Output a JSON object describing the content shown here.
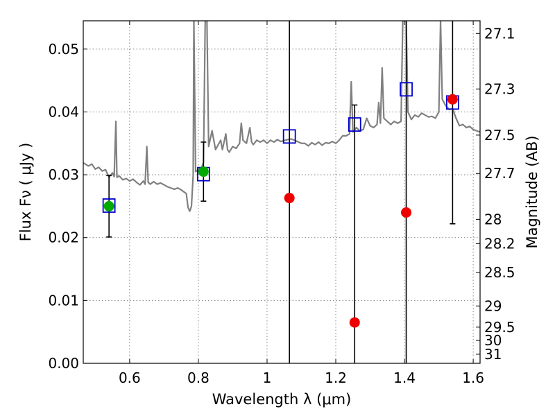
{
  "chart_data": {
    "type": "scatter",
    "title": "",
    "xlabel": "Wavelength  λ (μm)",
    "ylabel": "Flux  Fν  ( μJy )",
    "y2label": "Magnitude (AB)",
    "xlim": [
      0.465,
      1.62
    ],
    "ylim": [
      0.0,
      0.0545
    ],
    "grid": true,
    "x_ticks": [
      0.6,
      0.8,
      1.0,
      1.2,
      1.4,
      1.6
    ],
    "x_tick_labels": [
      "0.6",
      "0.8",
      "1",
      "1.2",
      "1.4",
      "1.6"
    ],
    "y_ticks": [
      0.0,
      0.01,
      0.02,
      0.03,
      0.04,
      0.05
    ],
    "y_tick_labels": [
      "0.00",
      "0.01",
      "0.02",
      "0.03",
      "0.04",
      "0.05"
    ],
    "y2_ticks": [
      27.1,
      27.3,
      27.5,
      27.7,
      28,
      28.2,
      28.5,
      29,
      29.5,
      30,
      31
    ],
    "y2_tick_labels": [
      "27.1",
      "27.3",
      "27.5",
      "27.7",
      "28",
      "28.2",
      "28.5",
      "29",
      "29.5",
      "30",
      "31"
    ],
    "colors": {
      "spectrum": "#808080",
      "model_box": "#0000cc",
      "detection": "#00aa00",
      "upper_limit": "#ee0000",
      "errorbar": "#000000",
      "grid": "#666666"
    },
    "series": [
      {
        "name": "model spectrum",
        "kind": "line",
        "points": [
          [
            0.465,
            0.0319
          ],
          [
            0.48,
            0.0314
          ],
          [
            0.49,
            0.0317
          ],
          [
            0.5,
            0.0309
          ],
          [
            0.51,
            0.0312
          ],
          [
            0.52,
            0.0306
          ],
          [
            0.53,
            0.0308
          ],
          [
            0.54,
            0.0296
          ],
          [
            0.55,
            0.0303
          ],
          [
            0.555,
            0.0297
          ],
          [
            0.56,
            0.0385
          ],
          [
            0.563,
            0.0296
          ],
          [
            0.57,
            0.0298
          ],
          [
            0.58,
            0.0292
          ],
          [
            0.59,
            0.0294
          ],
          [
            0.6,
            0.029
          ],
          [
            0.61,
            0.0293
          ],
          [
            0.62,
            0.0288
          ],
          [
            0.63,
            0.0284
          ],
          [
            0.64,
            0.029
          ],
          [
            0.645,
            0.0285
          ],
          [
            0.65,
            0.0345
          ],
          [
            0.654,
            0.0288
          ],
          [
            0.66,
            0.0285
          ],
          [
            0.67,
            0.0289
          ],
          [
            0.68,
            0.0285
          ],
          [
            0.69,
            0.0287
          ],
          [
            0.7,
            0.0284
          ],
          [
            0.71,
            0.0281
          ],
          [
            0.72,
            0.0279
          ],
          [
            0.73,
            0.0277
          ],
          [
            0.74,
            0.0279
          ],
          [
            0.75,
            0.0276
          ],
          [
            0.76,
            0.0272
          ],
          [
            0.765,
            0.027
          ],
          [
            0.77,
            0.0248
          ],
          [
            0.775,
            0.0242
          ],
          [
            0.78,
            0.025
          ],
          [
            0.785,
            0.03
          ],
          [
            0.787,
            0.0545
          ],
          [
            0.792,
            0.0305
          ],
          [
            0.8,
            0.0308
          ],
          [
            0.81,
            0.0312
          ],
          [
            0.815,
            0.032
          ],
          [
            0.82,
            0.0545
          ],
          [
            0.825,
            0.0545
          ],
          [
            0.83,
            0.0345
          ],
          [
            0.84,
            0.037
          ],
          [
            0.85,
            0.034
          ],
          [
            0.86,
            0.035
          ],
          [
            0.865,
            0.0355
          ],
          [
            0.87,
            0.034
          ],
          [
            0.88,
            0.0365
          ],
          [
            0.885,
            0.034
          ],
          [
            0.89,
            0.0336
          ],
          [
            0.9,
            0.0345
          ],
          [
            0.91,
            0.0342
          ],
          [
            0.92,
            0.035
          ],
          [
            0.925,
            0.0382
          ],
          [
            0.93,
            0.0355
          ],
          [
            0.94,
            0.035
          ],
          [
            0.95,
            0.0375
          ],
          [
            0.955,
            0.0352
          ],
          [
            0.96,
            0.0348
          ],
          [
            0.97,
            0.0355
          ],
          [
            0.98,
            0.0352
          ],
          [
            0.99,
            0.0355
          ],
          [
            1.0,
            0.035
          ],
          [
            1.01,
            0.0355
          ],
          [
            1.02,
            0.0352
          ],
          [
            1.03,
            0.0356
          ],
          [
            1.04,
            0.0353
          ],
          [
            1.06,
            0.0356
          ],
          [
            1.07,
            0.0357
          ],
          [
            1.08,
            0.0355
          ],
          [
            1.1,
            0.035
          ],
          [
            1.11,
            0.035
          ],
          [
            1.12,
            0.0346
          ],
          [
            1.13,
            0.0351
          ],
          [
            1.14,
            0.0348
          ],
          [
            1.15,
            0.0352
          ],
          [
            1.16,
            0.0347
          ],
          [
            1.17,
            0.0351
          ],
          [
            1.18,
            0.035
          ],
          [
            1.19,
            0.0353
          ],
          [
            1.2,
            0.035
          ],
          [
            1.21,
            0.0355
          ],
          [
            1.22,
            0.0362
          ],
          [
            1.23,
            0.0362
          ],
          [
            1.24,
            0.0365
          ],
          [
            1.245,
            0.0448
          ],
          [
            1.25,
            0.0368
          ],
          [
            1.26,
            0.0375
          ],
          [
            1.27,
            0.037
          ],
          [
            1.28,
            0.0372
          ],
          [
            1.29,
            0.039
          ],
          [
            1.3,
            0.0378
          ],
          [
            1.31,
            0.0375
          ],
          [
            1.32,
            0.038
          ],
          [
            1.325,
            0.0415
          ],
          [
            1.33,
            0.0382
          ],
          [
            1.335,
            0.047
          ],
          [
            1.34,
            0.039
          ],
          [
            1.35,
            0.0385
          ],
          [
            1.36,
            0.038
          ],
          [
            1.37,
            0.0385
          ],
          [
            1.38,
            0.0382
          ],
          [
            1.39,
            0.0385
          ],
          [
            1.395,
            0.0545
          ],
          [
            1.405,
            0.0545
          ],
          [
            1.41,
            0.04
          ],
          [
            1.42,
            0.0388
          ],
          [
            1.43,
            0.0395
          ],
          [
            1.44,
            0.0392
          ],
          [
            1.45,
            0.0398
          ],
          [
            1.46,
            0.0395
          ],
          [
            1.47,
            0.0392
          ],
          [
            1.48,
            0.0393
          ],
          [
            1.49,
            0.039
          ],
          [
            1.5,
            0.04
          ],
          [
            1.505,
            0.0545
          ],
          [
            1.51,
            0.042
          ],
          [
            1.52,
            0.041
          ],
          [
            1.53,
            0.0404
          ],
          [
            1.54,
            0.0405
          ],
          [
            1.55,
            0.039
          ],
          [
            1.56,
            0.0378
          ],
          [
            1.57,
            0.038
          ],
          [
            1.58,
            0.0375
          ],
          [
            1.59,
            0.0377
          ],
          [
            1.6,
            0.0372
          ],
          [
            1.61,
            0.037
          ],
          [
            1.62,
            0.0368
          ]
        ]
      },
      {
        "name": "model photometry",
        "kind": "open-square",
        "points": [
          [
            0.54,
            0.0251
          ],
          [
            0.815,
            0.0301
          ],
          [
            1.065,
            0.0361
          ],
          [
            1.255,
            0.038
          ],
          [
            1.405,
            0.0436
          ],
          [
            1.54,
            0.0415
          ]
        ]
      },
      {
        "name": "detections",
        "kind": "filled-circle",
        "points": [
          [
            0.54,
            0.025
          ],
          [
            0.815,
            0.0305
          ]
        ]
      },
      {
        "name": "non-detections",
        "kind": "filled-circle",
        "points": [
          [
            1.065,
            0.0263
          ],
          [
            1.255,
            0.0065
          ],
          [
            1.405,
            0.024
          ],
          [
            1.54,
            0.042
          ]
        ]
      },
      {
        "name": "error bars",
        "kind": "errorbar",
        "bars": [
          [
            0.54,
            0.0201,
            0.0299
          ],
          [
            0.815,
            0.0258,
            0.0352
          ],
          [
            1.065,
            0.0,
            0.0545
          ],
          [
            1.255,
            0.0,
            0.0411
          ],
          [
            1.405,
            0.0,
            0.0545
          ],
          [
            1.54,
            0.0222,
            0.0545
          ]
        ]
      }
    ]
  }
}
